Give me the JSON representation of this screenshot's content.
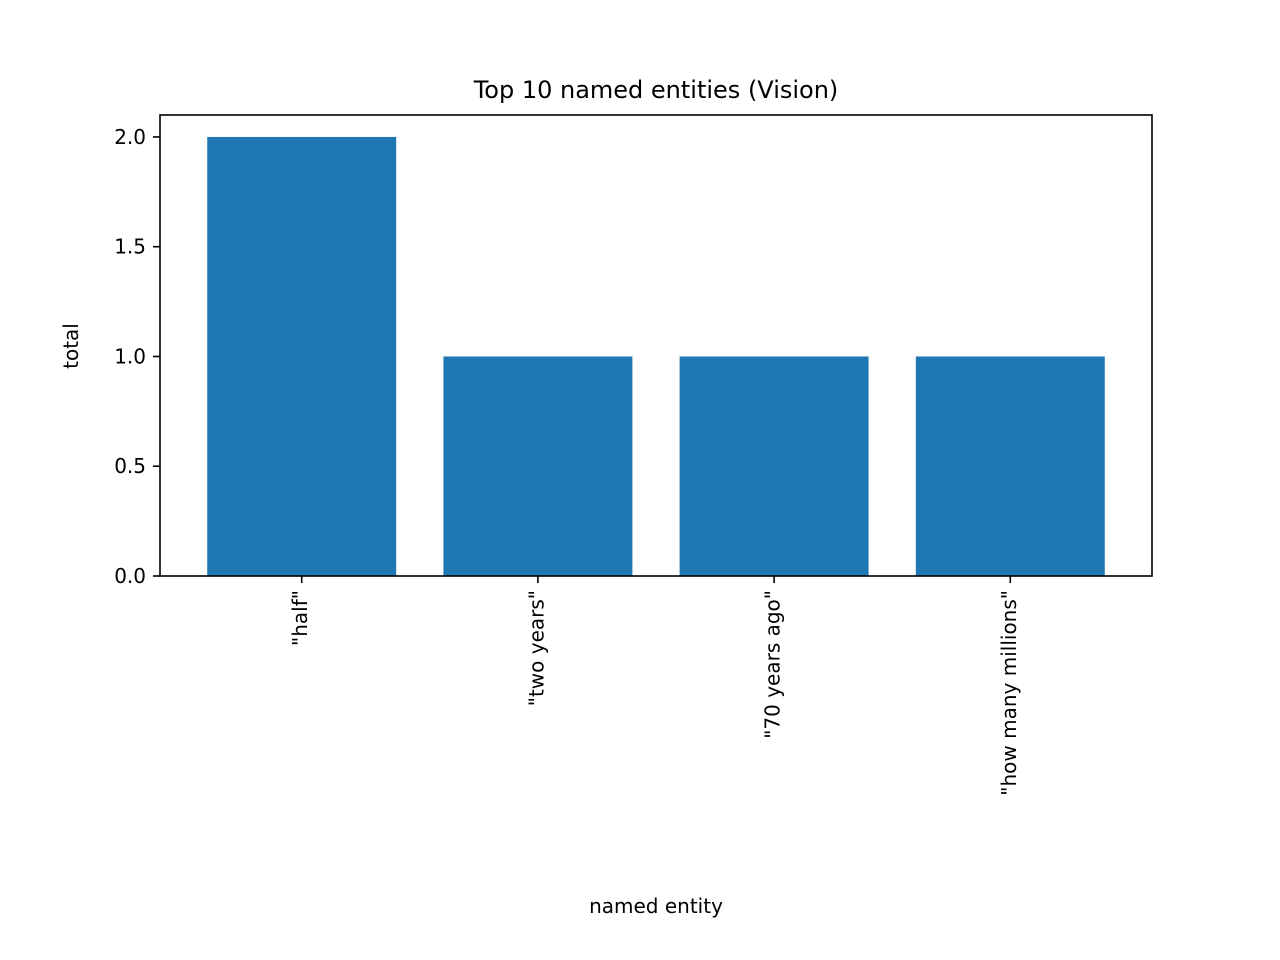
{
  "chart_data": {
    "type": "bar",
    "title": "Top 10 named entities (Vision)",
    "xlabel": "named entity",
    "ylabel": "total",
    "categories": [
      "\"half\"",
      "\"two years\"",
      "\"70 years ago\"",
      "\"how many millions\""
    ],
    "values": [
      2,
      1,
      1,
      1
    ],
    "ylim": [
      0,
      2.1
    ],
    "yticks": [
      "0.0",
      "0.5",
      "1.0",
      "1.5",
      "2.0"
    ],
    "ytick_values": [
      0,
      0.5,
      1.0,
      1.5,
      2.0
    ],
    "bar_color": "#1f77b4",
    "grid": false,
    "legend": "none"
  }
}
